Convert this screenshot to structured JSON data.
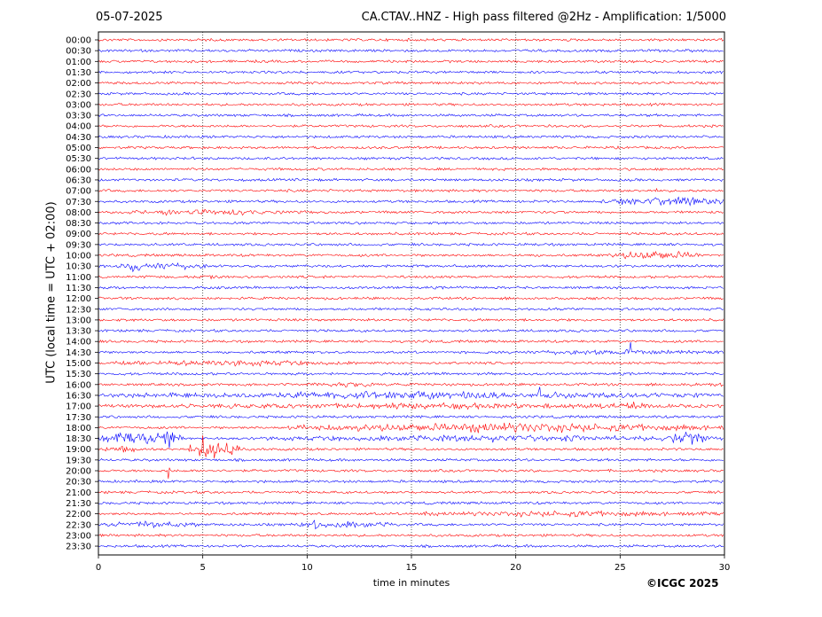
{
  "header": {
    "date": "05-07-2025",
    "title": "CA.CTAV..HNZ - High pass filtered @2Hz - Amplification: 1/5000"
  },
  "footer": {
    "copyright": "©ICGC 2025"
  },
  "chart_data": {
    "type": "line",
    "title": "CA.CTAV..HNZ - High pass filtered @2Hz - Amplification: 1/5000",
    "xlabel": "time in minutes",
    "ylabel": "UTC (local time = UTC + 02:00)",
    "xlim": [
      0,
      30
    ],
    "x_ticks": [
      0,
      5,
      10,
      15,
      20,
      25,
      30
    ],
    "grid": "vertical dotted at 5-minute ticks",
    "colors": {
      "even_trace": "#ff0000",
      "odd_trace": "#0000ff"
    },
    "rows": [
      "00:00",
      "00:30",
      "01:00",
      "01:30",
      "02:00",
      "02:30",
      "03:00",
      "03:30",
      "04:00",
      "04:30",
      "05:00",
      "05:30",
      "06:00",
      "06:30",
      "07:00",
      "07:30",
      "08:00",
      "08:30",
      "09:00",
      "09:30",
      "10:00",
      "10:30",
      "11:00",
      "11:30",
      "12:00",
      "12:30",
      "13:00",
      "13:30",
      "14:00",
      "14:30",
      "15:00",
      "15:30",
      "16:00",
      "16:30",
      "17:00",
      "17:30",
      "18:00",
      "18:30",
      "19:00",
      "19:30",
      "20:00",
      "20:30",
      "21:00",
      "21:30",
      "22:00",
      "22:30",
      "23:00",
      "23:30"
    ],
    "bursts": [
      {
        "row": "07:00",
        "start": 26.6,
        "end": 26.9,
        "amp": 0.25
      },
      {
        "row": "07:30",
        "start": 24.0,
        "end": 30.0,
        "amp": 0.5
      },
      {
        "row": "08:00",
        "start": 0.5,
        "end": 10.0,
        "amp": 0.3
      },
      {
        "row": "08:00",
        "start": 3.0,
        "end": 3.6,
        "amp": 0.5
      },
      {
        "row": "08:00",
        "start": 6.3,
        "end": 7.0,
        "amp": 0.55
      },
      {
        "row": "10:00",
        "start": 24.5,
        "end": 29.0,
        "amp": 0.55
      },
      {
        "row": "10:30",
        "start": 0.5,
        "end": 5.5,
        "amp": 0.45
      },
      {
        "row": "10:30",
        "start": 1.3,
        "end": 2.0,
        "amp": 0.9
      },
      {
        "row": "11:00",
        "start": 4.5,
        "end": 6.5,
        "amp": 0.2
      },
      {
        "row": "12:30",
        "start": 15.5,
        "end": 16.5,
        "amp": 0.15
      },
      {
        "row": "14:30",
        "start": 18.5,
        "end": 30.0,
        "amp": 0.3
      },
      {
        "row": "14:30",
        "start": 25.3,
        "end": 25.6,
        "amp": 1.5
      },
      {
        "row": "15:00",
        "start": 0.0,
        "end": 12.5,
        "amp": 0.35
      },
      {
        "row": "16:00",
        "start": 10.0,
        "end": 14.0,
        "amp": 0.3
      },
      {
        "row": "16:00",
        "start": 28.0,
        "end": 30.0,
        "amp": 0.3
      },
      {
        "row": "16:30",
        "start": 0.0,
        "end": 30.0,
        "amp": 0.45
      },
      {
        "row": "16:30",
        "start": 21.0,
        "end": 21.2,
        "amp": 1.2
      },
      {
        "row": "17:00",
        "start": 0.3,
        "end": 30.0,
        "amp": 0.35
      },
      {
        "row": "17:00",
        "start": 24.0,
        "end": 26.5,
        "amp": 0.55
      },
      {
        "row": "18:00",
        "start": 9.0,
        "end": 30.0,
        "amp": 0.55
      },
      {
        "row": "18:00",
        "start": 9.9,
        "end": 10.1,
        "amp": 1.4
      },
      {
        "row": "18:30",
        "start": 0.0,
        "end": 4.0,
        "amp": 0.7
      },
      {
        "row": "18:30",
        "start": 3.0,
        "end": 3.6,
        "amp": 1.8
      },
      {
        "row": "18:30",
        "start": 8.0,
        "end": 30.0,
        "amp": 0.4
      },
      {
        "row": "18:30",
        "start": 27.5,
        "end": 29.5,
        "amp": 0.8
      },
      {
        "row": "19:00",
        "start": 0.0,
        "end": 2.0,
        "amp": 0.45
      },
      {
        "row": "19:00",
        "start": 4.3,
        "end": 6.8,
        "amp": 1.0
      },
      {
        "row": "19:00",
        "start": 4.9,
        "end": 5.1,
        "amp": 2.2
      },
      {
        "row": "19:00",
        "start": 6.0,
        "end": 6.5,
        "amp": 1.4
      },
      {
        "row": "20:00",
        "start": 3.3,
        "end": 3.4,
        "amp": 4.0
      },
      {
        "row": "21:00",
        "start": 0.0,
        "end": 0.5,
        "amp": 0.2
      },
      {
        "row": "22:00",
        "start": 15.5,
        "end": 30.0,
        "amp": 0.35
      },
      {
        "row": "22:00",
        "start": 15.6,
        "end": 15.8,
        "amp": 0.8
      },
      {
        "row": "22:30",
        "start": 0.3,
        "end": 5.0,
        "amp": 0.4
      },
      {
        "row": "22:30",
        "start": 9.5,
        "end": 14.5,
        "amp": 0.4
      },
      {
        "row": "22:30",
        "start": 10.3,
        "end": 10.6,
        "amp": 0.9
      }
    ]
  }
}
